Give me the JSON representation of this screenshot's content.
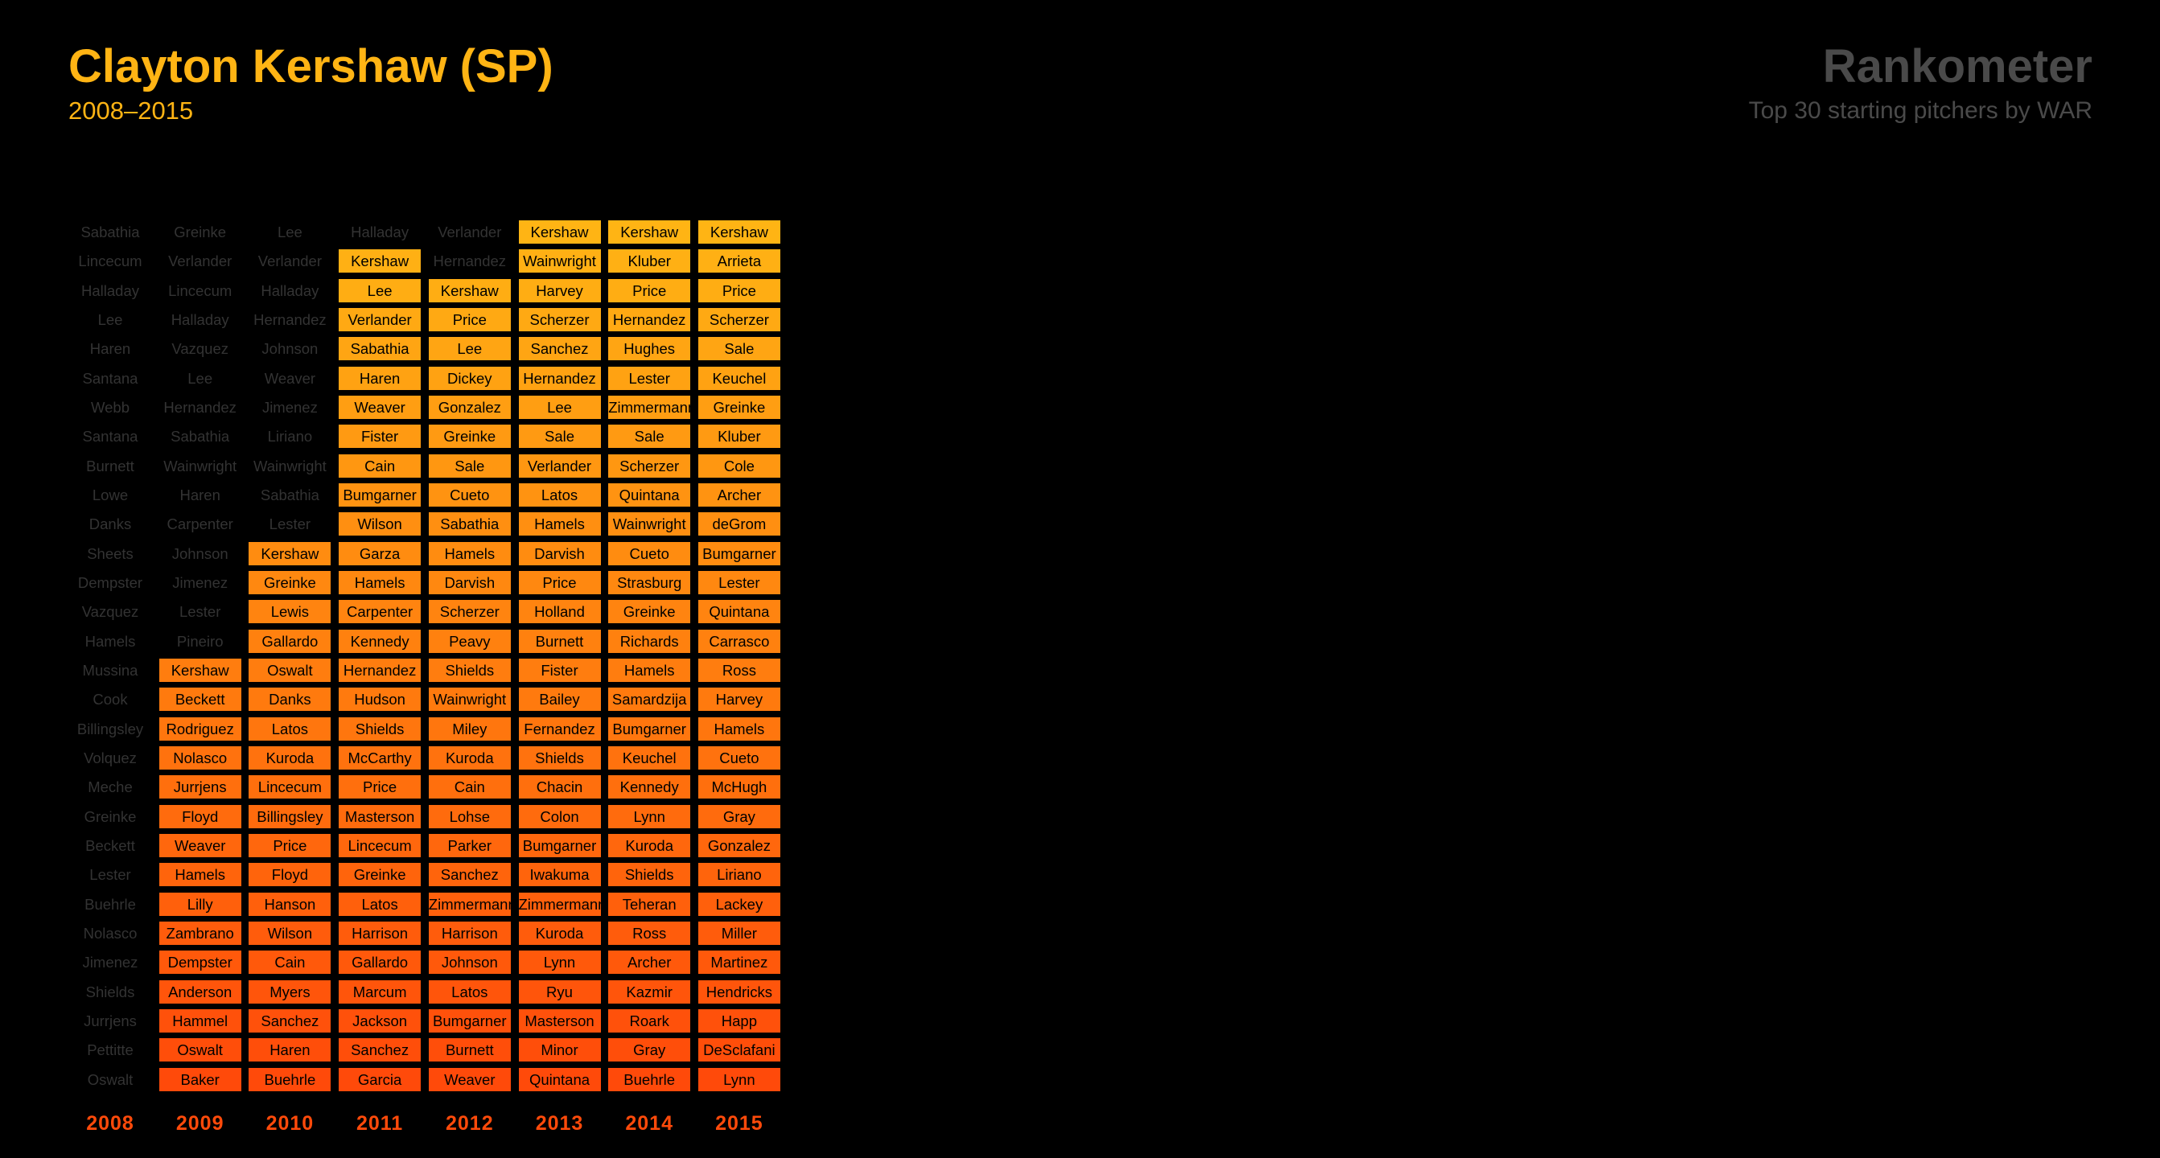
{
  "header": {
    "title": "Clayton Kershaw (SP)",
    "subtitle": "2008–2015",
    "brand": "Rankometer",
    "tagline": "Top 30 starting pitchers by WAR"
  },
  "chart_data": {
    "type": "table",
    "highlight_player": "Kershaw",
    "rank_count": 30,
    "colors": {
      "rank_top": "#FFB414",
      "rank_bottom": "#FF4A0A",
      "muted_text": "#333333",
      "background": "#000000"
    },
    "columns": [
      {
        "year": "2008",
        "highlight_from_rank": null,
        "players": [
          "Sabathia",
          "Lincecum",
          "Halladay",
          "Lee",
          "Haren",
          "Santana",
          "Webb",
          "Santana",
          "Burnett",
          "Lowe",
          "Danks",
          "Sheets",
          "Dempster",
          "Vazquez",
          "Hamels",
          "Mussina",
          "Cook",
          "Billingsley",
          "Volquez",
          "Meche",
          "Greinke",
          "Beckett",
          "Lester",
          "Buehrle",
          "Nolasco",
          "Jimenez",
          "Shields",
          "Jurrjens",
          "Pettitte",
          "Oswalt"
        ]
      },
      {
        "year": "2009",
        "highlight_from_rank": 16,
        "players": [
          "Greinke",
          "Verlander",
          "Lincecum",
          "Halladay",
          "Vazquez",
          "Lee",
          "Hernandez",
          "Sabathia",
          "Wainwright",
          "Haren",
          "Carpenter",
          "Johnson",
          "Jimenez",
          "Lester",
          "Pineiro",
          "Kershaw",
          "Beckett",
          "Rodriguez",
          "Nolasco",
          "Jurrjens",
          "Floyd",
          "Weaver",
          "Hamels",
          "Lilly",
          "Zambrano",
          "Dempster",
          "Anderson",
          "Hammel",
          "Oswalt",
          "Baker"
        ]
      },
      {
        "year": "2010",
        "highlight_from_rank": 12,
        "players": [
          "Lee",
          "Verlander",
          "Halladay",
          "Hernandez",
          "Johnson",
          "Weaver",
          "Jimenez",
          "Liriano",
          "Wainwright",
          "Sabathia",
          "Lester",
          "Kershaw",
          "Greinke",
          "Lewis",
          "Gallardo",
          "Oswalt",
          "Danks",
          "Latos",
          "Kuroda",
          "Lincecum",
          "Billingsley",
          "Price",
          "Floyd",
          "Hanson",
          "Wilson",
          "Cain",
          "Myers",
          "Sanchez",
          "Haren",
          "Buehrle"
        ]
      },
      {
        "year": "2011",
        "highlight_from_rank": 2,
        "players": [
          "Halladay",
          "Kershaw",
          "Lee",
          "Verlander",
          "Sabathia",
          "Haren",
          "Weaver",
          "Fister",
          "Cain",
          "Bumgarner",
          "Wilson",
          "Garza",
          "Hamels",
          "Carpenter",
          "Kennedy",
          "Hernandez",
          "Hudson",
          "Shields",
          "McCarthy",
          "Price",
          "Masterson",
          "Lincecum",
          "Greinke",
          "Latos",
          "Harrison",
          "Gallardo",
          "Marcum",
          "Jackson",
          "Sanchez",
          "Garcia"
        ]
      },
      {
        "year": "2012",
        "highlight_from_rank": 3,
        "players": [
          "Verlander",
          "Hernandez",
          "Kershaw",
          "Price",
          "Lee",
          "Dickey",
          "Gonzalez",
          "Greinke",
          "Sale",
          "Cueto",
          "Sabathia",
          "Hamels",
          "Darvish",
          "Scherzer",
          "Peavy",
          "Shields",
          "Wainwright",
          "Miley",
          "Kuroda",
          "Cain",
          "Lohse",
          "Parker",
          "Sanchez",
          "Zimmermann",
          "Harrison",
          "Johnson",
          "Latos",
          "Bumgarner",
          "Burnett",
          "Weaver"
        ]
      },
      {
        "year": "2013",
        "highlight_from_rank": 1,
        "players": [
          "Kershaw",
          "Wainwright",
          "Harvey",
          "Scherzer",
          "Sanchez",
          "Hernandez",
          "Lee",
          "Sale",
          "Verlander",
          "Latos",
          "Hamels",
          "Darvish",
          "Price",
          "Holland",
          "Burnett",
          "Fister",
          "Bailey",
          "Fernandez",
          "Shields",
          "Chacin",
          "Colon",
          "Bumgarner",
          "Iwakuma",
          "Zimmermann",
          "Kuroda",
          "Lynn",
          "Ryu",
          "Masterson",
          "Minor",
          "Quintana"
        ]
      },
      {
        "year": "2014",
        "highlight_from_rank": 1,
        "players": [
          "Kershaw",
          "Kluber",
          "Price",
          "Hernandez",
          "Hughes",
          "Lester",
          "Zimmermann",
          "Sale",
          "Scherzer",
          "Quintana",
          "Wainwright",
          "Cueto",
          "Strasburg",
          "Greinke",
          "Richards",
          "Hamels",
          "Samardzija",
          "Bumgarner",
          "Keuchel",
          "Kennedy",
          "Lynn",
          "Kuroda",
          "Shields",
          "Teheran",
          "Ross",
          "Archer",
          "Kazmir",
          "Roark",
          "Gray",
          "Buehrle"
        ]
      },
      {
        "year": "2015",
        "highlight_from_rank": 1,
        "players": [
          "Kershaw",
          "Arrieta",
          "Price",
          "Scherzer",
          "Sale",
          "Keuchel",
          "Greinke",
          "Kluber",
          "Cole",
          "Archer",
          "deGrom",
          "Bumgarner",
          "Lester",
          "Quintana",
          "Carrasco",
          "Ross",
          "Harvey",
          "Hamels",
          "Cueto",
          "McHugh",
          "Gray",
          "Gonzalez",
          "Liriano",
          "Lackey",
          "Miller",
          "Martinez",
          "Hendricks",
          "Happ",
          "DeSclafani",
          "Lynn"
        ]
      }
    ]
  }
}
